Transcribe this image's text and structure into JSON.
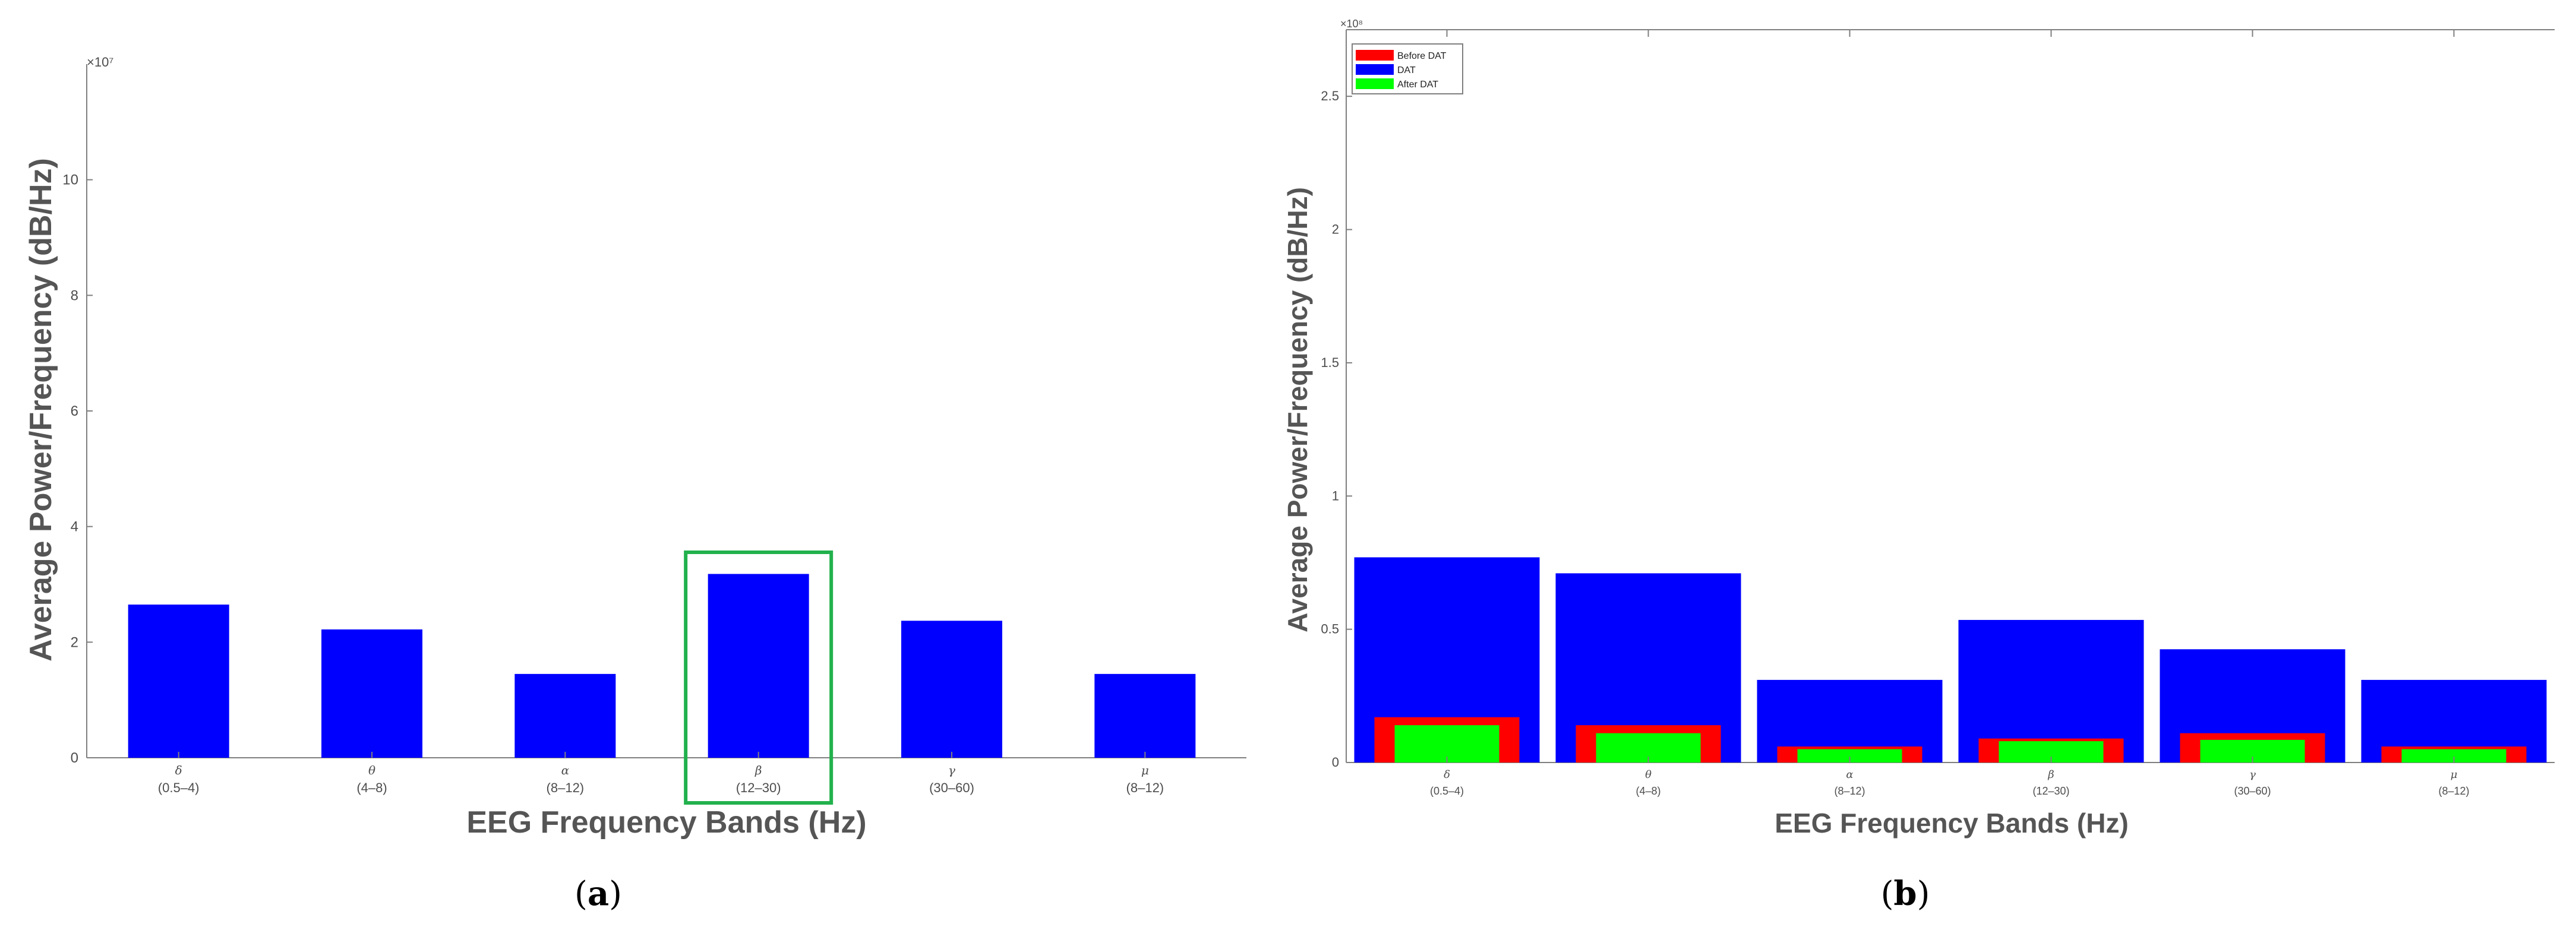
{
  "panels": {
    "a": {
      "caption_paren_open": "(",
      "caption_letter": "a",
      "caption_paren_close": ")"
    },
    "b": {
      "caption_paren_open": "(",
      "caption_letter": "b",
      "caption_paren_close": ")"
    }
  },
  "colors": {
    "blue": "#0000ff",
    "red": "#ff0000",
    "green": "#00ff00",
    "highlight_box": "#22b14c",
    "axis": "#7f7f7f",
    "tick_text": "#4d4d4d",
    "label_text": "#555555"
  },
  "chart_data": [
    {
      "type": "bar",
      "panel": "a",
      "title": "",
      "xlabel": "EEG Frequency Bands (Hz)",
      "ylabel": "Average Power/Frequency (dB/Hz)",
      "y_exponent_label": "×10⁷",
      "ylim": [
        0,
        12
      ],
      "yticks": [
        0,
        2,
        4,
        6,
        8,
        10
      ],
      "categories": [
        {
          "symbol": "δ",
          "range": "(0.5–4)"
        },
        {
          "symbol": "θ",
          "range": "(4–8)"
        },
        {
          "symbol": "α",
          "range": "(8–12)"
        },
        {
          "symbol": "β",
          "range": "(12–30)"
        },
        {
          "symbol": "γ",
          "range": "(30–60)"
        },
        {
          "symbol": "μ",
          "range": "(8–12)"
        }
      ],
      "series": [
        {
          "values": [
            2.65,
            2.22,
            1.45,
            3.18,
            2.37,
            1.45
          ],
          "color": "#0000ff"
        }
      ],
      "highlighted_category": "β",
      "grid": false
    },
    {
      "type": "bar",
      "panel": "b",
      "title": "",
      "xlabel": "EEG Frequency Bands (Hz)",
      "ylabel": "Average Power/Frequency (dB/Hz)",
      "y_exponent_label": "×10⁸",
      "ylim": [
        0,
        2.75
      ],
      "yticks": [
        0,
        0.5,
        1,
        1.5,
        2,
        2.5
      ],
      "ytick_labels": [
        "0",
        "0.5",
        "1",
        "1.5",
        "2",
        "2.5"
      ],
      "categories": [
        {
          "symbol": "δ",
          "range": "(0.5–4)"
        },
        {
          "symbol": "θ",
          "range": "(4–8)"
        },
        {
          "symbol": "α",
          "range": "(8–12)"
        },
        {
          "symbol": "β",
          "range": "(12–30)"
        },
        {
          "symbol": "γ",
          "range": "(30–60)"
        },
        {
          "symbol": "μ",
          "range": "(8–12)"
        }
      ],
      "series": [
        {
          "name": "Before DAT",
          "color": "#ff0000",
          "values": [
            0.17,
            0.14,
            0.06,
            0.09,
            0.11,
            0.06
          ]
        },
        {
          "name": "DAT",
          "color": "#0000ff",
          "values": [
            0.77,
            0.71,
            0.31,
            0.535,
            0.425,
            0.31
          ]
        },
        {
          "name": "After DAT",
          "color": "#00ff00",
          "values": [
            0.14,
            0.11,
            0.05,
            0.08,
            0.085,
            0.05
          ]
        }
      ],
      "legend": "top-left",
      "grid": false
    }
  ]
}
